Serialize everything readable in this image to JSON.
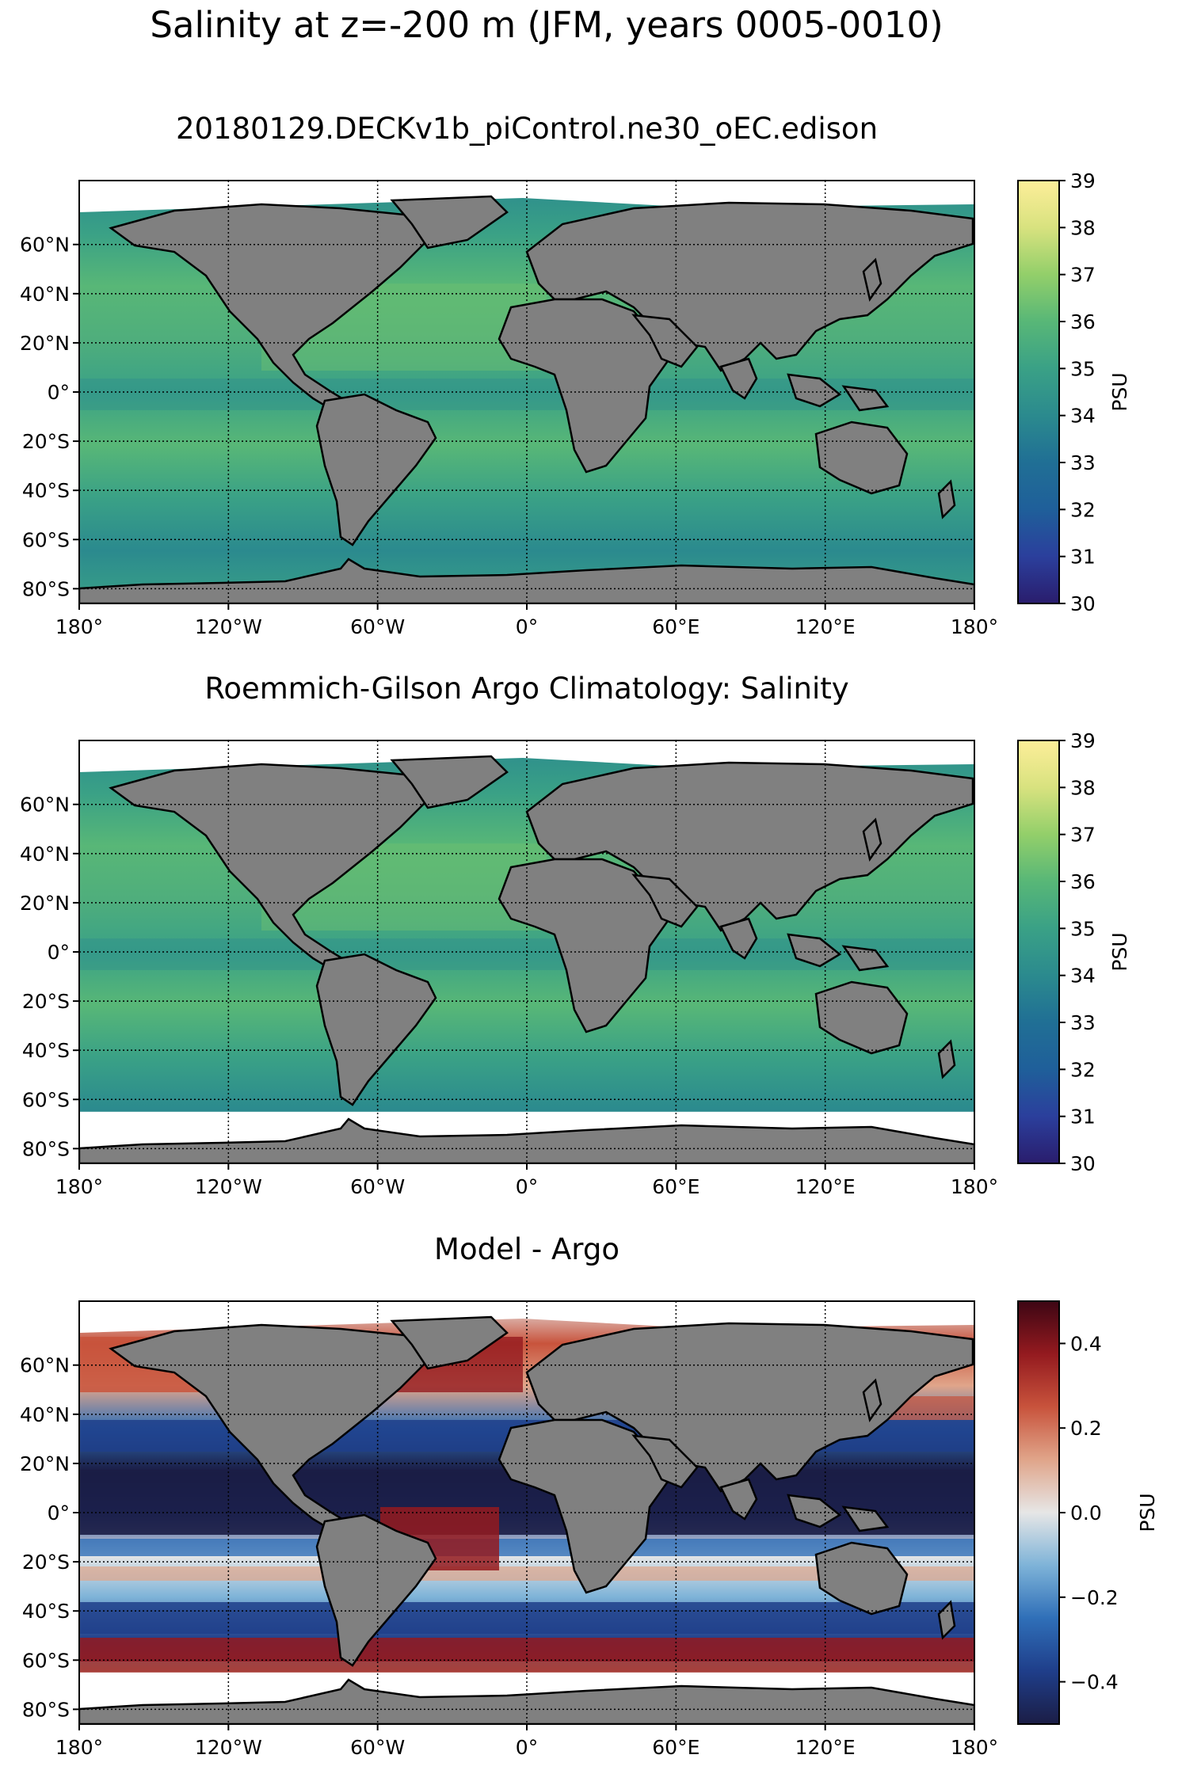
{
  "figure": {
    "suptitle": "Salinity at z=-200 m (JFM, years 0005-0010)"
  },
  "panels": [
    {
      "id": "model",
      "title": "20180129.DECKv1b_piControl.ne30_oEC.edison",
      "colorbar": {
        "label": "PSU",
        "ticks": [
          "30",
          "31",
          "32",
          "33",
          "34",
          "35",
          "36",
          "37",
          "38",
          "39"
        ],
        "range": [
          30,
          39
        ],
        "colors": [
          "#2a1d6d",
          "#2b3f9c",
          "#1f5f9a",
          "#206f95",
          "#2b8a8e",
          "#3aa186",
          "#58b777",
          "#93cf6a",
          "#d8e27f",
          "#fdee99"
        ]
      },
      "ocean_fill": "#3f9a88"
    },
    {
      "id": "obs",
      "title": "Roemmich-Gilson Argo Climatology: Salinity",
      "colorbar": {
        "label": "PSU",
        "ticks": [
          "30",
          "31",
          "32",
          "33",
          "34",
          "35",
          "36",
          "37",
          "38",
          "39"
        ],
        "range": [
          30,
          39
        ],
        "colors": [
          "#2a1d6d",
          "#2b3f9c",
          "#1f5f9a",
          "#206f95",
          "#2b8a8e",
          "#3aa186",
          "#58b777",
          "#93cf6a",
          "#d8e27f",
          "#fdee99"
        ]
      },
      "ocean_fill": "#3f9a88"
    },
    {
      "id": "diff",
      "title": "Model - Argo",
      "colorbar": {
        "label": "PSU",
        "ticks": [
          "−0.4",
          "−0.2",
          "0.0",
          "0.2",
          "0.4"
        ],
        "tick_values": [
          -0.4,
          -0.2,
          0.0,
          0.2,
          0.4
        ],
        "range": [
          -0.5,
          0.5
        ],
        "colors": [
          "#1b1d45",
          "#1f3e8a",
          "#2f6fb8",
          "#7eb3d8",
          "#e6e6e6",
          "#e0a58a",
          "#c8533c",
          "#941a1f",
          "#3d0614"
        ]
      },
      "ocean_fill": "#e6e6e6"
    }
  ],
  "axes": {
    "lat_ticks": [
      "60°N",
      "40°N",
      "20°N",
      "0°",
      "20°S",
      "40°S",
      "60°S",
      "80°S"
    ],
    "lat_values": [
      60,
      40,
      20,
      0,
      -20,
      -40,
      -60,
      -80
    ],
    "lon_ticks": [
      "180°",
      "120°W",
      "60°W",
      "0°",
      "60°E",
      "120°E",
      "180°"
    ],
    "lon_values": [
      -180,
      -120,
      -60,
      0,
      60,
      120,
      180
    ]
  },
  "colors": {
    "land": "#808080",
    "coastline": "#000000",
    "missing": "#ffffff",
    "grid": "#000000"
  }
}
